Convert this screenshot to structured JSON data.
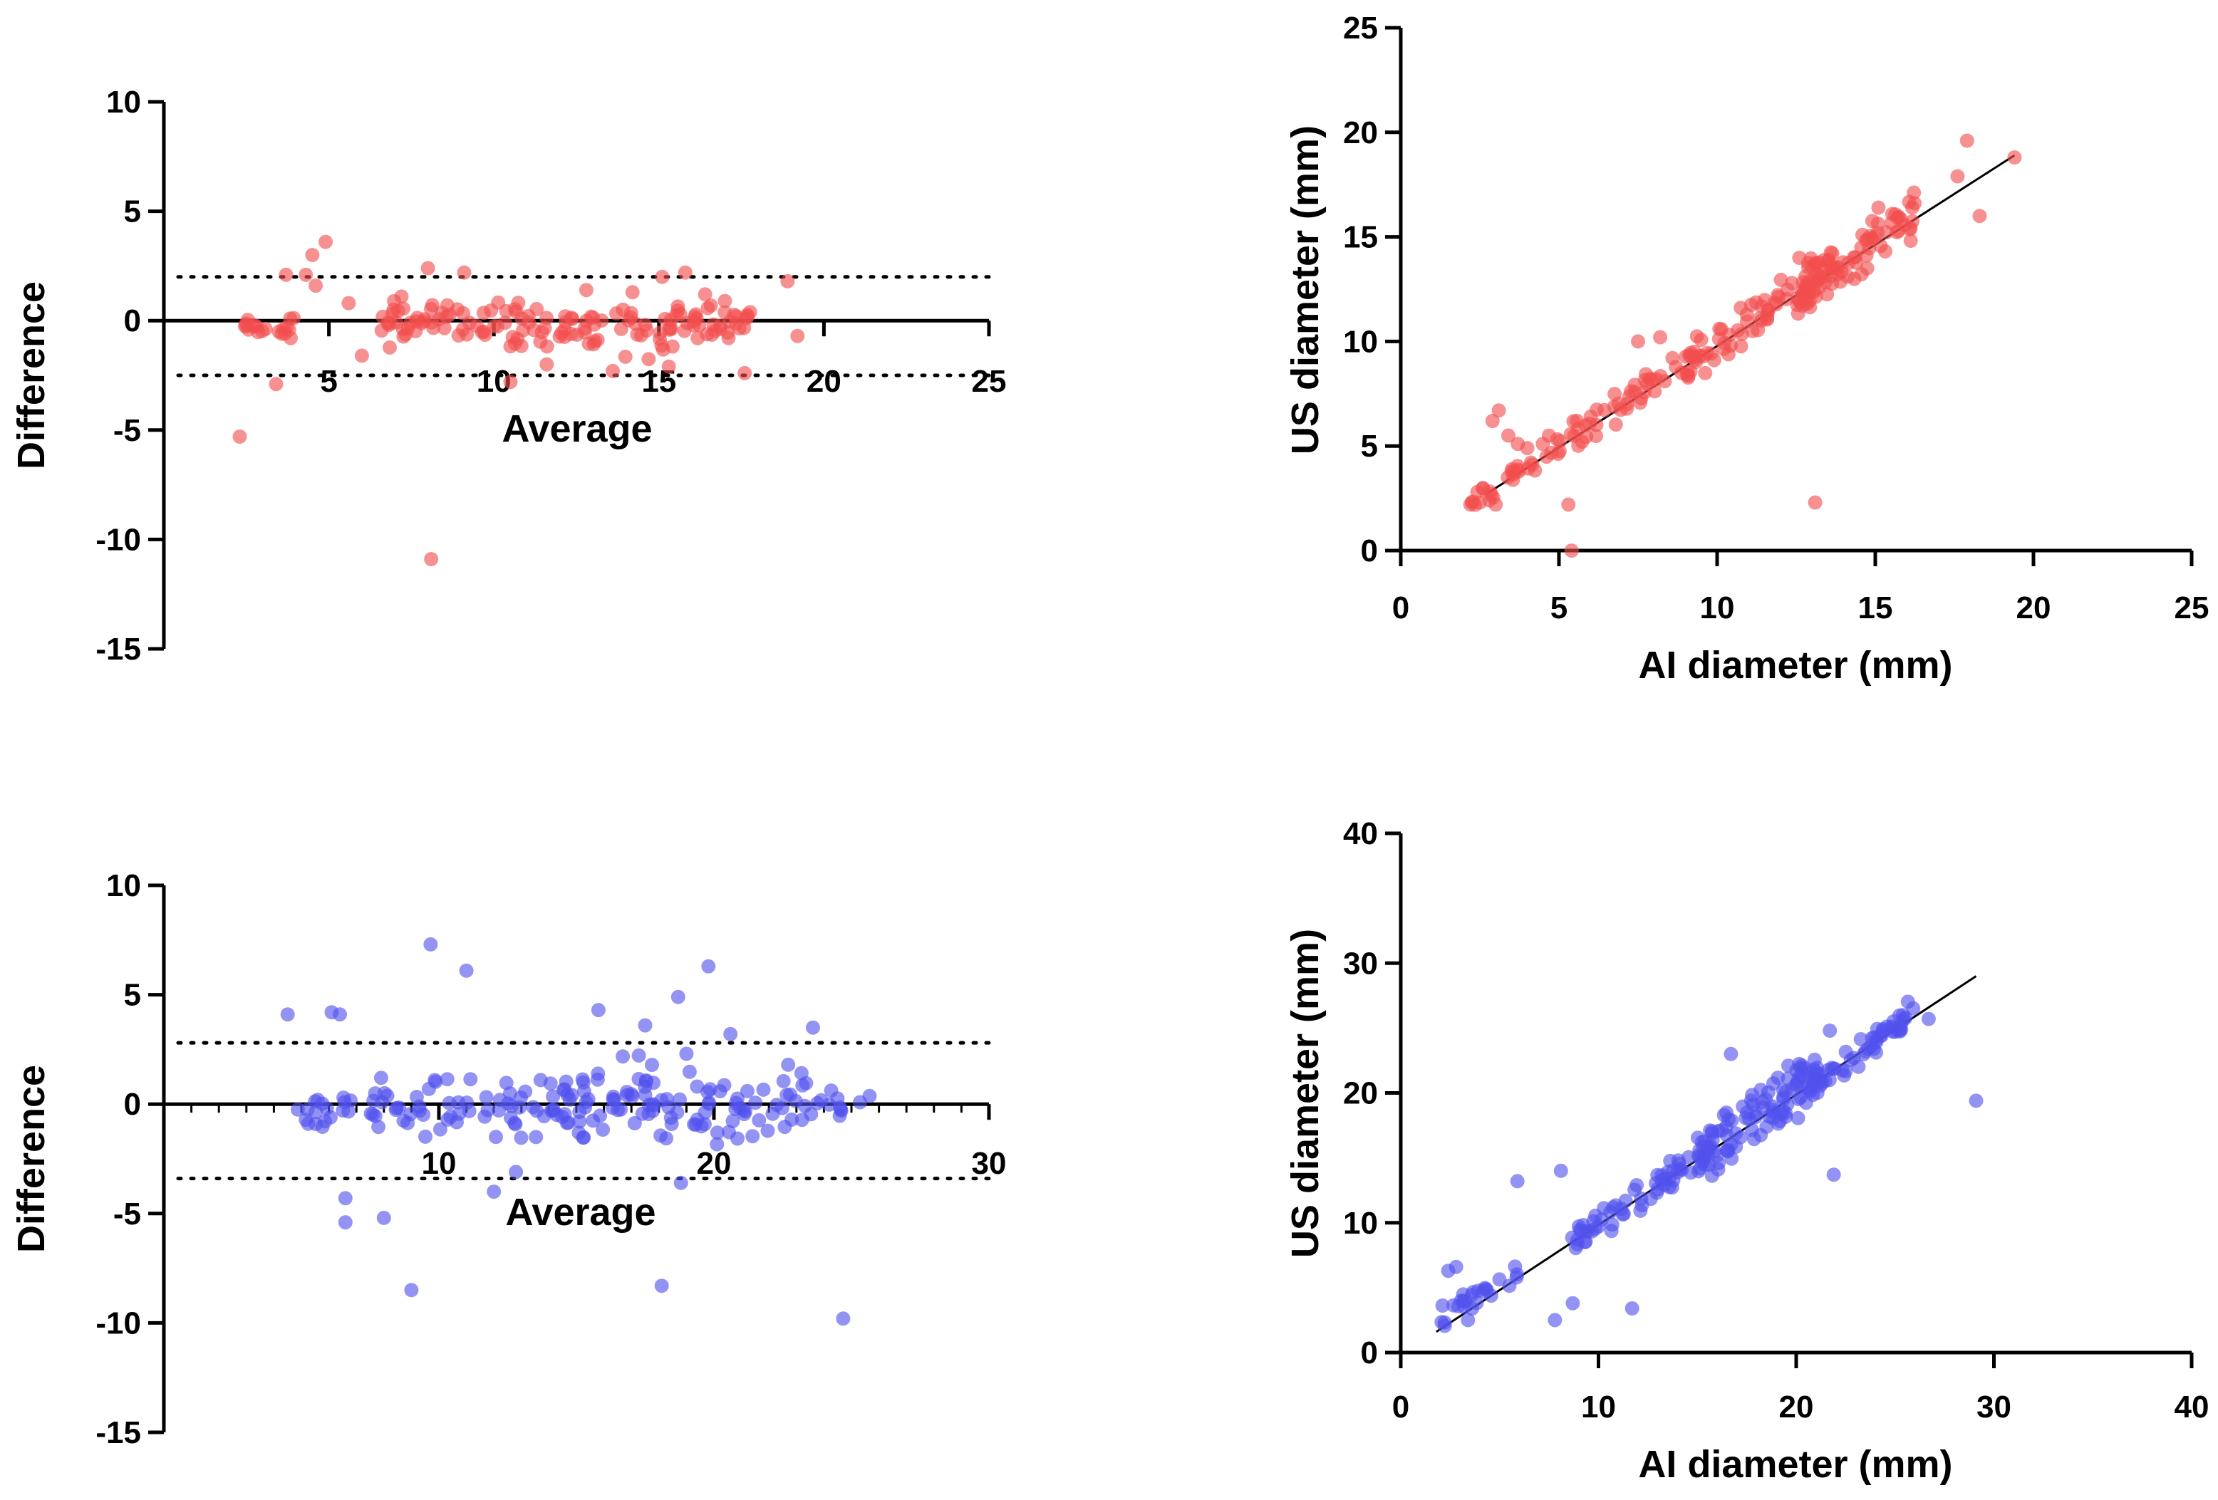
{
  "chart_data": [
    {
      "id": "ba_red",
      "type": "scatter",
      "variant": "bland-altman",
      "xlabel": "Average",
      "ylabel": "Difference",
      "xlim": [
        0,
        25
      ],
      "ylim": [
        -15,
        10
      ],
      "x_ticks": [
        5,
        10,
        15,
        20,
        25
      ],
      "y_ticks": [
        10,
        5,
        0,
        -5,
        -10,
        -15
      ],
      "zero_line": 0,
      "limits_of_agreement": [
        2.0,
        -2.5
      ],
      "point_color": "#f24d4d",
      "seed": 11,
      "points": [
        [
          2.3,
          -5.3
        ],
        [
          8.1,
          -10.9
        ],
        [
          3.4,
          -2.9
        ],
        [
          4.5,
          3.0
        ],
        [
          4.9,
          3.6
        ],
        [
          4.3,
          2.1
        ],
        [
          3.7,
          2.1
        ],
        [
          4.6,
          1.6
        ],
        [
          8.0,
          2.4
        ],
        [
          9.1,
          2.2
        ],
        [
          15.1,
          2.0
        ],
        [
          15.8,
          2.2
        ],
        [
          18.9,
          1.8
        ],
        [
          14.2,
          1.3
        ],
        [
          10.5,
          -2.8
        ],
        [
          11.6,
          -2.0
        ],
        [
          13.6,
          -2.3
        ],
        [
          15.3,
          -2.1
        ],
        [
          17.6,
          -2.4
        ],
        [
          6.0,
          -1.6
        ],
        [
          19.2,
          -0.7
        ],
        [
          5.6,
          0.8
        ],
        [
          7.2,
          1.1
        ],
        [
          12.8,
          1.4
        ],
        [
          16.4,
          1.2
        ],
        [
          17.0,
          0.9
        ]
      ],
      "generated_clusters": [
        {
          "count": 20,
          "x": [
            2.4,
            4.3
          ],
          "y": [
            -0.9,
            0.3
          ]
        },
        {
          "count": 55,
          "x": [
            6.5,
            11.5
          ],
          "y": [
            -1.3,
            1.1
          ]
        },
        {
          "count": 70,
          "x": [
            10.5,
            16.5
          ],
          "y": [
            -1.9,
            1.0
          ]
        },
        {
          "count": 22,
          "x": [
            16.0,
            18.2
          ],
          "y": [
            -1.0,
            0.9
          ]
        }
      ]
    },
    {
      "id": "sc_red",
      "type": "scatter",
      "variant": "correlation",
      "xlabel": "AI diameter (mm)",
      "ylabel": "US diameter (mm)",
      "xlim": [
        0,
        25
      ],
      "ylim": [
        0,
        25
      ],
      "x_ticks": [
        0,
        5,
        10,
        15,
        20,
        25
      ],
      "y_ticks": [
        0,
        5,
        10,
        15,
        20,
        25
      ],
      "fit_line": {
        "x": [
          2.7,
          19.4
        ],
        "y": [
          2.7,
          18.9
        ]
      },
      "point_color": "#f24d4d",
      "seed": 29,
      "points": [
        [
          2.2,
          2.2
        ],
        [
          2.5,
          2.3
        ],
        [
          2.8,
          2.4
        ],
        [
          3.0,
          2.2
        ],
        [
          3.1,
          6.7
        ],
        [
          2.9,
          6.2
        ],
        [
          3.4,
          5.5
        ],
        [
          3.7,
          5.1
        ],
        [
          4.0,
          4.9
        ],
        [
          5.3,
          2.2
        ],
        [
          5.4,
          0.0
        ],
        [
          13.1,
          2.3
        ],
        [
          17.9,
          19.6
        ],
        [
          19.4,
          18.8
        ],
        [
          18.3,
          16.0
        ],
        [
          17.6,
          17.9
        ],
        [
          7.5,
          10.0
        ],
        [
          8.2,
          10.2
        ],
        [
          12.6,
          14.0
        ],
        [
          15.1,
          16.4
        ]
      ],
      "generated_clusters": [
        {
          "count": 18,
          "x": [
            2.2,
            3.8
          ],
          "y_offset": [
            -0.4,
            0.6
          ]
        },
        {
          "count": 60,
          "x": [
            4.0,
            9.5
          ],
          "y_offset": [
            -0.9,
            0.9
          ]
        },
        {
          "count": 80,
          "x": [
            9.0,
            14.0
          ],
          "y_offset": [
            -1.2,
            1.0
          ]
        },
        {
          "count": 70,
          "x": [
            12.5,
            16.5
          ],
          "y_offset": [
            -1.6,
            1.2
          ]
        }
      ]
    },
    {
      "id": "ba_blue",
      "type": "scatter",
      "variant": "bland-altman",
      "xlabel": "Average",
      "ylabel": "Difference",
      "xlim": [
        0,
        30
      ],
      "ylim": [
        -15,
        10
      ],
      "x_ticks": [
        10,
        20,
        30
      ],
      "y_ticks": [
        10,
        5,
        0,
        -5,
        -10,
        -15
      ],
      "x_minor_step": 1,
      "zero_line": 0,
      "limits_of_agreement": [
        2.8,
        -3.4
      ],
      "point_color": "#5050ee",
      "seed": 47,
      "points": [
        [
          9.7,
          7.3
        ],
        [
          11.0,
          6.1
        ],
        [
          19.8,
          6.3
        ],
        [
          6.1,
          4.2
        ],
        [
          6.4,
          4.1
        ],
        [
          15.8,
          4.3
        ],
        [
          18.7,
          4.9
        ],
        [
          20.6,
          3.2
        ],
        [
          23.6,
          3.5
        ],
        [
          4.5,
          4.1
        ],
        [
          6.6,
          -4.3
        ],
        [
          6.6,
          -5.4
        ],
        [
          8.0,
          -5.2
        ],
        [
          9.0,
          -8.5
        ],
        [
          18.1,
          -8.3
        ],
        [
          24.7,
          -9.8
        ],
        [
          12.0,
          -4.0
        ],
        [
          12.8,
          -3.1
        ],
        [
          18.8,
          -3.6
        ],
        [
          17.5,
          3.6
        ],
        [
          19.0,
          2.3
        ],
        [
          22.7,
          1.8
        ],
        [
          7.9,
          1.2
        ],
        [
          13.7,
          1.1
        ]
      ],
      "generated_clusters": [
        {
          "count": 18,
          "x": [
            4.6,
            6.8
          ],
          "y": [
            -1.2,
            0.6
          ]
        },
        {
          "count": 70,
          "x": [
            7.5,
            15.5
          ],
          "y": [
            -1.9,
            1.5
          ]
        },
        {
          "count": 80,
          "x": [
            14.5,
            21.5
          ],
          "y": [
            -2.4,
            2.6
          ]
        },
        {
          "count": 30,
          "x": [
            21.5,
            26.0
          ],
          "y": [
            -1.6,
            1.6
          ]
        }
      ]
    },
    {
      "id": "sc_blue",
      "type": "scatter",
      "variant": "correlation",
      "xlabel": "AI diameter (mm)",
      "ylabel": "US diameter (mm)",
      "xlim": [
        0,
        40
      ],
      "ylim": [
        0,
        40
      ],
      "x_ticks": [
        0,
        10,
        20,
        30,
        40
      ],
      "y_ticks": [
        0,
        10,
        20,
        30,
        40
      ],
      "fit_line": {
        "x": [
          1.8,
          29.1
        ],
        "y": [
          1.6,
          29.0
        ]
      },
      "point_color": "#5050ee",
      "seed": 71,
      "points": [
        [
          2.4,
          6.3
        ],
        [
          2.8,
          6.6
        ],
        [
          5.9,
          13.2
        ],
        [
          8.1,
          14.0
        ],
        [
          11.7,
          3.4
        ],
        [
          7.8,
          2.5
        ],
        [
          8.7,
          3.8
        ],
        [
          29.1,
          19.4
        ],
        [
          21.9,
          13.7
        ],
        [
          16.7,
          23.0
        ],
        [
          19.6,
          22.1
        ],
        [
          21.7,
          24.8
        ],
        [
          26.7,
          25.7
        ],
        [
          25.4,
          26.0
        ],
        [
          3.4,
          2.5
        ],
        [
          4.3,
          4.9
        ]
      ],
      "generated_clusters": [
        {
          "count": 25,
          "x": [
            1.8,
            6.0
          ],
          "y_offset": [
            -0.6,
            1.6
          ]
        },
        {
          "count": 70,
          "x": [
            8.5,
            16.0
          ],
          "y_offset": [
            -1.4,
            1.4
          ]
        },
        {
          "count": 90,
          "x": [
            15.0,
            21.0
          ],
          "y_offset": [
            -2.6,
            2.8
          ]
        },
        {
          "count": 60,
          "x": [
            20.5,
            26.0
          ],
          "y_offset": [
            -1.6,
            1.4
          ]
        }
      ]
    }
  ]
}
